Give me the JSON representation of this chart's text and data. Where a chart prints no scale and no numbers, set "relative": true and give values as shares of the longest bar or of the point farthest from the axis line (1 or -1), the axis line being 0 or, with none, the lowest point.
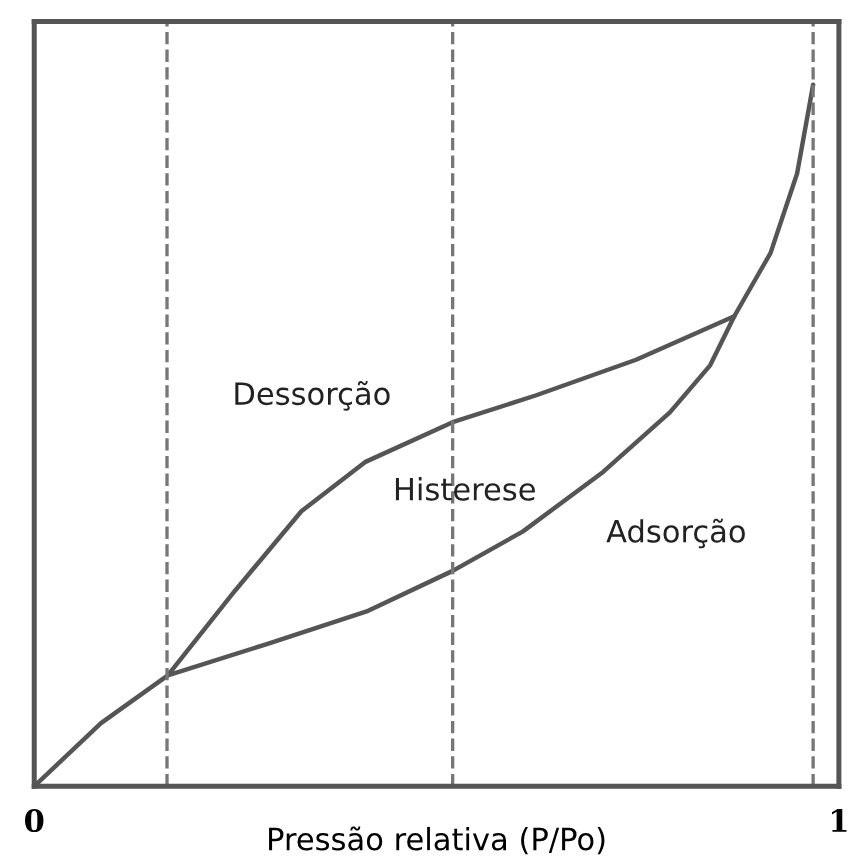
{
  "chart_data": {
    "type": "line",
    "relative": true,
    "xlabel": "Pressão relativa (P/Po)",
    "xlim": [
      0,
      1
    ],
    "xticks": [
      0,
      1
    ],
    "legend": false,
    "line_style": "solid",
    "series": [
      {
        "color": "#555555",
        "x": [
          0.0,
          0.083,
          0.166,
          0.29,
          0.415,
          0.52,
          0.607,
          0.707,
          0.79,
          0.84,
          0.87,
          0.915,
          0.948,
          0.968
        ],
        "values": [
          0.0,
          0.09,
          0.158,
          0.203,
          0.25,
          0.307,
          0.363,
          0.448,
          0.533,
          0.6,
          0.67,
          0.76,
          0.873,
          1.0
        ]
      },
      {
        "color": "#555555",
        "x": [
          0.166,
          0.249,
          0.332,
          0.411,
          0.52,
          0.623,
          0.748,
          0.87
        ],
        "values": [
          0.158,
          0.278,
          0.392,
          0.462,
          0.519,
          0.557,
          0.608,
          0.67
        ]
      }
    ],
    "ref_lines": [
      {
        "axis": "x",
        "value": 0.165,
        "color": "#777777",
        "line_style": "dashed"
      },
      {
        "axis": "x",
        "value": 0.52,
        "color": "#777777",
        "line_style": "dashed"
      },
      {
        "axis": "x",
        "value": 0.968,
        "color": "#777777",
        "line_style": "dashed"
      }
    ],
    "annotations": [
      "Dessorção",
      "Histerese",
      "Adsorção"
    ]
  }
}
